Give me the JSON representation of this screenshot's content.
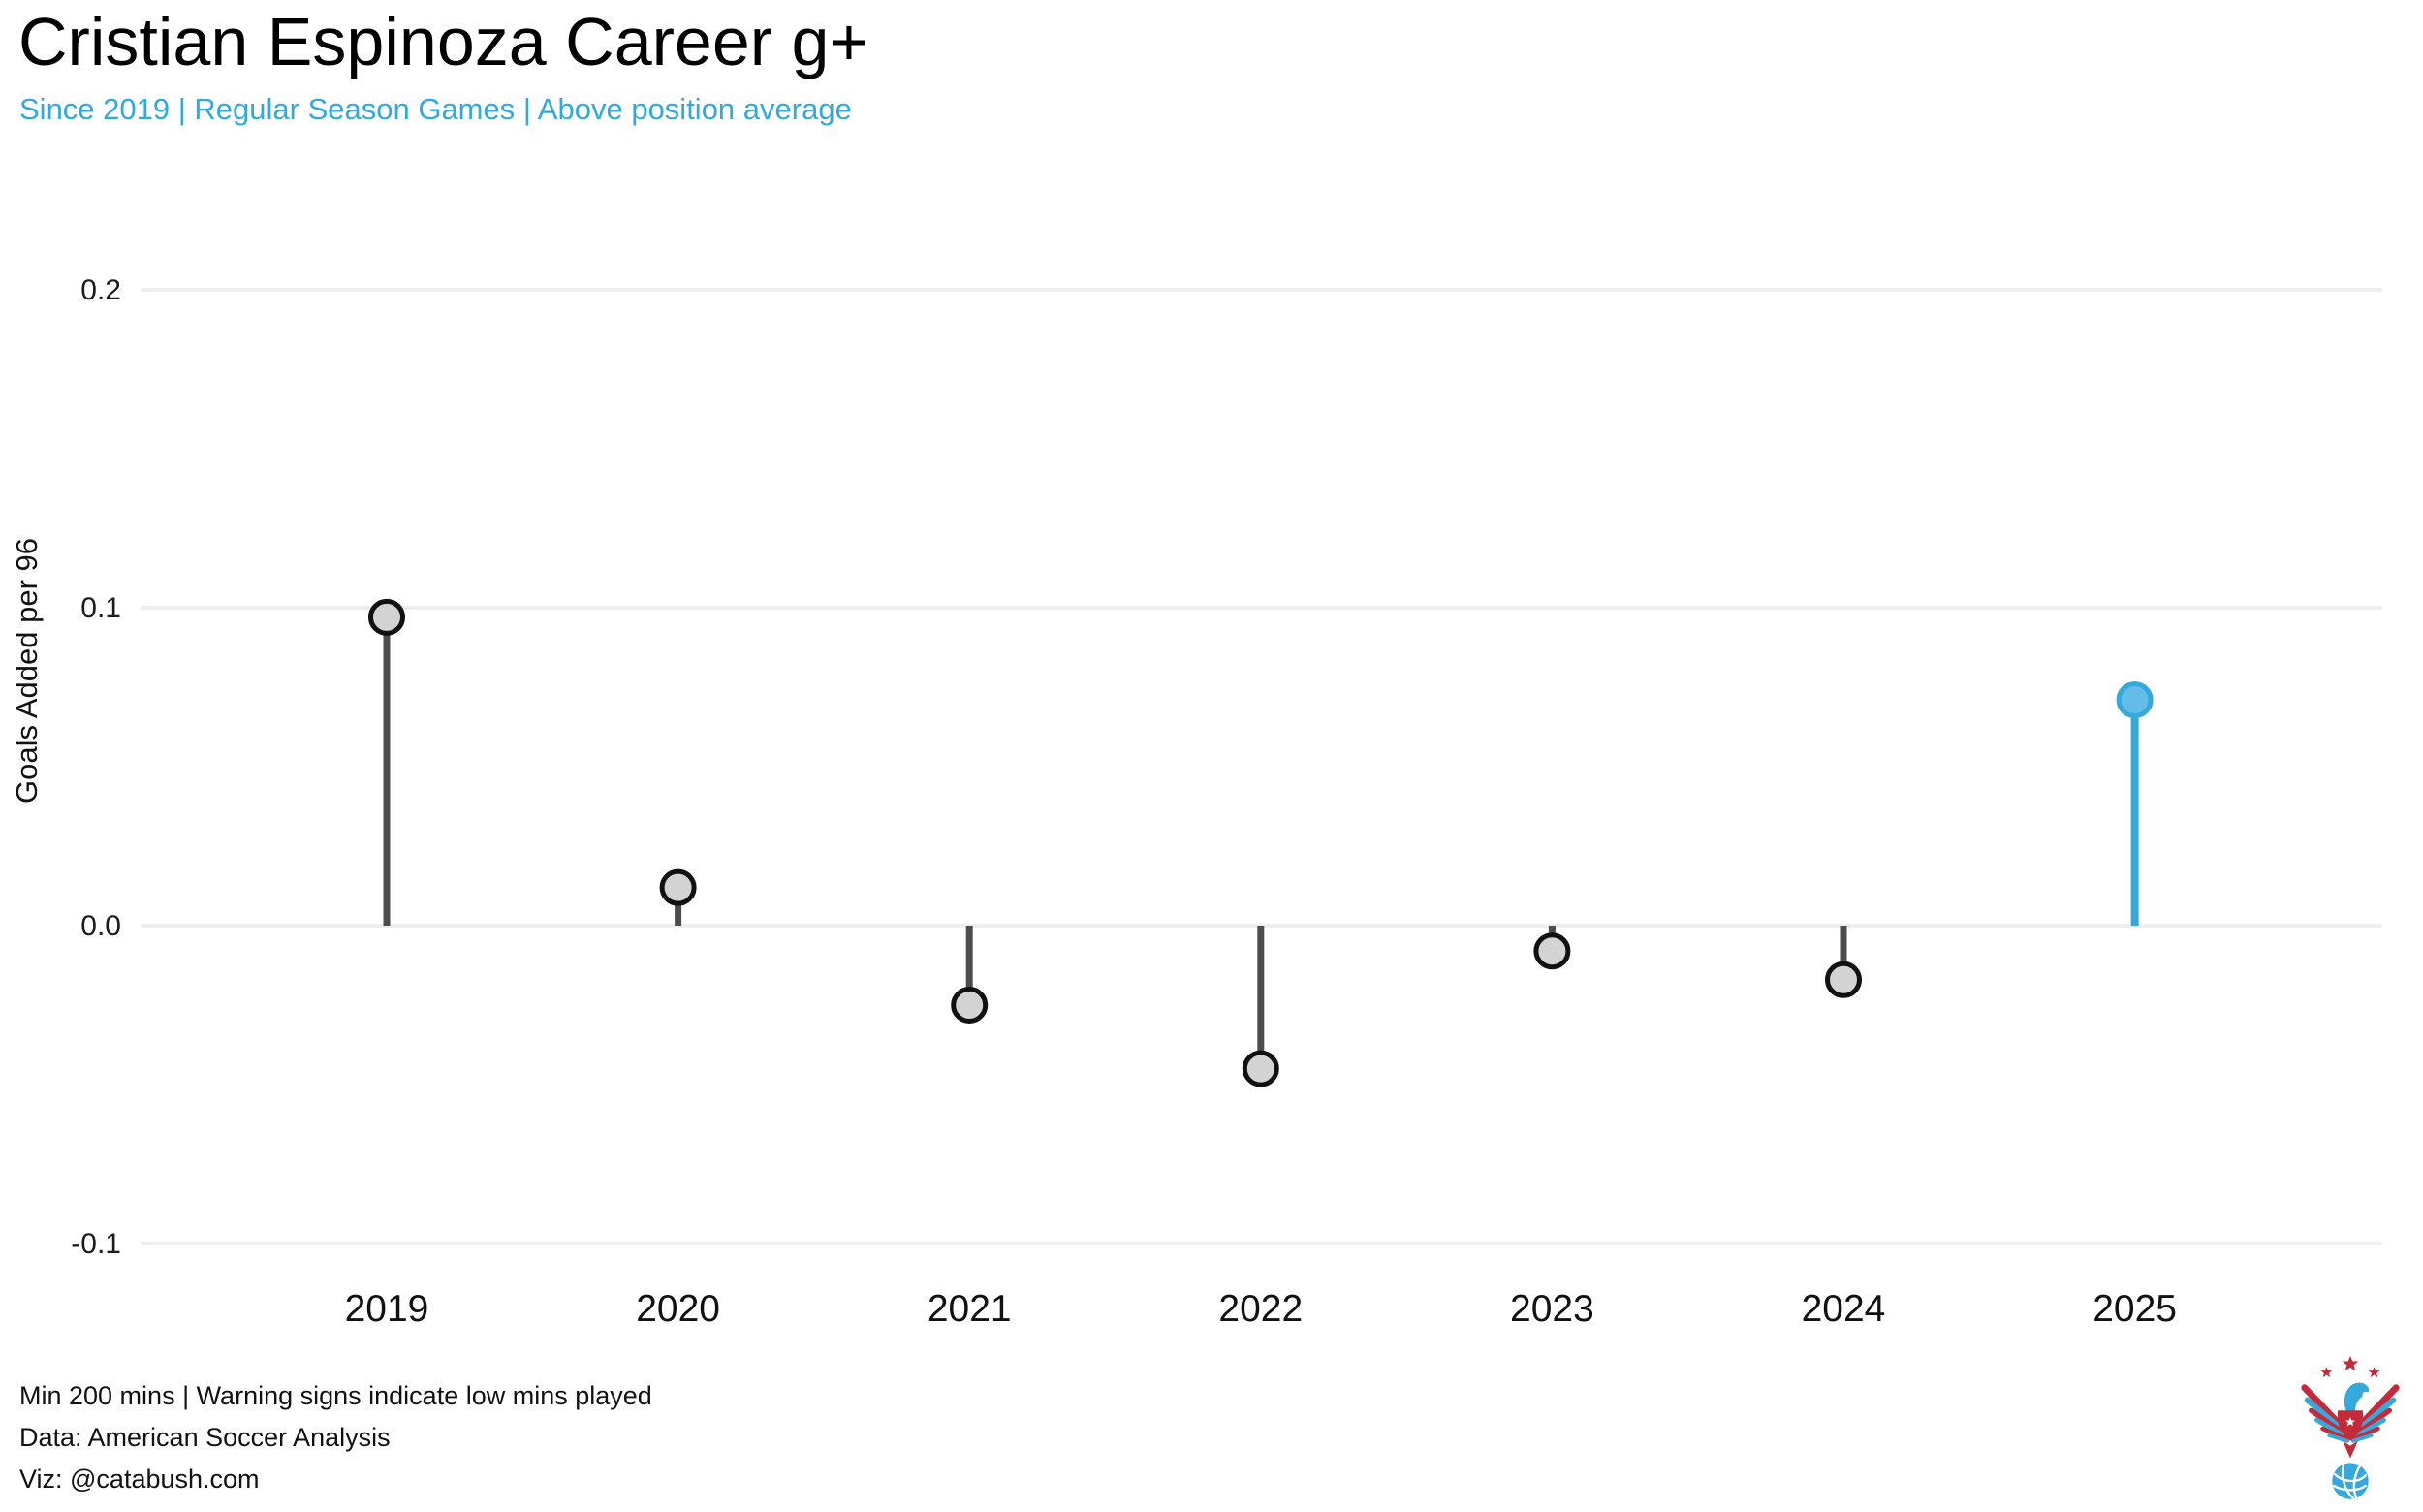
{
  "title": "Cristian Espinoza Career g+",
  "subtitle": "Since 2019 | Regular Season Games | Above position average",
  "footer": {
    "note": "Min 200 mins | Warning signs indicate low mins played",
    "data_source": "Data: American Soccer Analysis",
    "viz_credit": "Viz: @catabush.com"
  },
  "logo": {
    "name": "American Soccer Analysis eagle crest with soccer ball",
    "red": "#c42a3a",
    "blue": "#35a8dc"
  },
  "chart_data": {
    "type": "bar",
    "variant": "lollipop",
    "title": "Cristian Espinoza Career g+",
    "subtitle": "Since 2019 | Regular Season Games | Above position average",
    "xlabel": "",
    "ylabel": "Goals Added per 96",
    "categories": [
      "2019",
      "2020",
      "2021",
      "2022",
      "2023",
      "2024",
      "2025"
    ],
    "values": [
      0.097,
      0.012,
      -0.025,
      -0.045,
      -0.008,
      -0.017,
      0.071
    ],
    "highlight_index": 6,
    "highlight_category": "2025",
    "ylim": [
      -0.105,
      0.24
    ],
    "ytick_values": [
      0.2,
      0.1,
      0.0,
      -0.1
    ],
    "ytick_labels": [
      "0.2",
      "0.1",
      "0.0",
      "-0.1"
    ],
    "grid": "horizontal-only",
    "legend": "none",
    "colors": {
      "stem": "#4d4d4d",
      "point_fill": "#d3d3d3",
      "point_stroke": "#111111",
      "highlight_stem": "#35a8dc",
      "highlight_fill": "#63bde7",
      "highlight_stroke": "#35a8dc",
      "gridline": "#ececec",
      "subtitle": "#2fa9e1",
      "text": "#111111"
    }
  }
}
